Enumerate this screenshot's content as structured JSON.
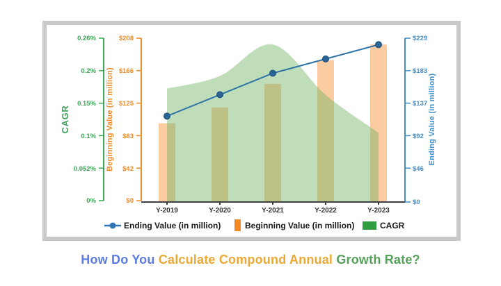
{
  "chart_data": {
    "type": "combo",
    "categories": [
      "Y-2019",
      "Y-2020",
      "Y-2021",
      "Y-2022",
      "Y-2023"
    ],
    "series": [
      {
        "name": "Ending Value (in million)",
        "type": "line",
        "axis": "ending",
        "values": [
          120,
          150,
          180,
          200,
          220
        ],
        "color": "#2e74a8",
        "marker_color": "#2a6496",
        "marker_stroke": "#1c4f7d"
      },
      {
        "name": "Beginning Value (in million)",
        "type": "bar",
        "axis": "beginning",
        "values": [
          100,
          120,
          150,
          180,
          200
        ],
        "color": "#f68821",
        "fill": "rgba(246,134,33,0.42)"
      },
      {
        "name": "CAGR",
        "type": "area",
        "axis": "cagr",
        "values": [
          0.18,
          0.2,
          0.25,
          0.17,
          0.11
        ],
        "unit": "%",
        "color": "#2f9e41",
        "fill": "rgba(116,180,100,0.45)"
      }
    ],
    "axes": {
      "cagr": {
        "label": "CAGR",
        "color": "#3ca757",
        "ticks": [
          "0%",
          "0.052%",
          "0.1%",
          "0.15%",
          "0.2%",
          "0.26%"
        ],
        "range": [
          0,
          0.26
        ]
      },
      "beginning": {
        "label": "Beginning Value (in million)",
        "color": "#ee8b28",
        "ticks": [
          "$0",
          "$42",
          "$83",
          "$125",
          "$166",
          "$208"
        ],
        "range": [
          0,
          208
        ]
      },
      "ending": {
        "label": "Ending Value (in million)",
        "color": "#418ec8",
        "ticks": [
          "$0",
          "$46",
          "$92",
          "$137",
          "$183",
          "$229"
        ],
        "range": [
          0,
          229
        ]
      },
      "x": {
        "color": "#3f4045",
        "label_color": "#333333"
      }
    },
    "legend": [
      {
        "label": "Ending Value (in million)",
        "swatch": "line-dot",
        "color": "#2e75b2"
      },
      {
        "label": "Beginning Value (in million)",
        "swatch": "bar",
        "color": "#f68821"
      },
      {
        "label": "CAGR",
        "swatch": "square",
        "color": "#2f9e41"
      }
    ],
    "grid": false,
    "legend_position": "bottom"
  },
  "caption": {
    "part1": "How Do You ",
    "part2": "Calculate Compound Annual ",
    "part3": "Growth Rate?",
    "colors": {
      "part1": "#5b7ce1",
      "part2": "#eba833",
      "part3": "#55a05a"
    }
  }
}
